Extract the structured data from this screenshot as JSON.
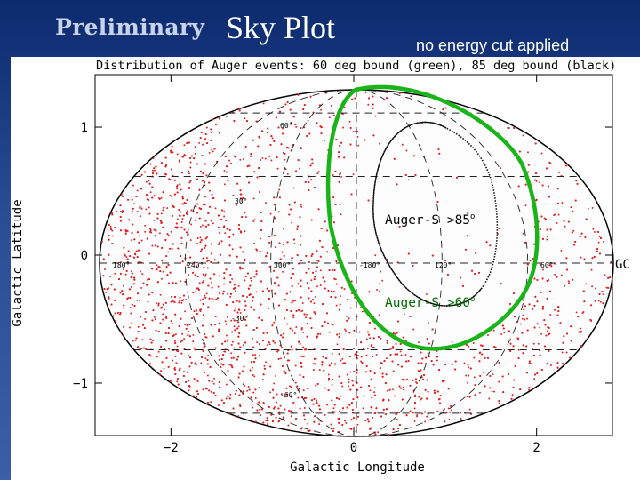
{
  "slide": {
    "title_prefix": "Preliminary",
    "title_main": "Sky Plot",
    "subtitle": "no energy cut applied"
  },
  "chart_data": {
    "type": "scatter",
    "projection": "Aitoff (Hammer) all-sky ellipse",
    "title": "Distribution of Auger events: 60 deg bound (green), 85 deg bound (black)",
    "xlabel": "Galactic Longitude",
    "ylabel": "Galactic Latitude",
    "xlim": [
      -2.83,
      2.83
    ],
    "ylim": [
      -1.41,
      1.41
    ],
    "x_ticks": [
      -2,
      0,
      2
    ],
    "y_ticks": [
      -1,
      0,
      1
    ],
    "grid": true,
    "series": [
      {
        "name": "Auger events",
        "color": "#e02020",
        "marker": "dot",
        "count_estimate": 6500
      }
    ],
    "longitude_labels": [
      "180°",
      "240°",
      "300°",
      "-180°",
      "120°",
      "60°"
    ],
    "latitude_labels_upper": [
      "60°",
      "30°"
    ],
    "latitude_labels_lower": [
      "-30°",
      "-60°"
    ],
    "bounds": [
      {
        "label": "Auger-S >85",
        "degree_mark": "o",
        "color": "#18b418"
      },
      {
        "label": "Auger-S >60",
        "degree_mark": "o",
        "color": "#18b418"
      }
    ],
    "annotations": {
      "gc_label": "GC",
      "curve_85_color": "#000000",
      "curve_60_color": "#12c012"
    }
  }
}
